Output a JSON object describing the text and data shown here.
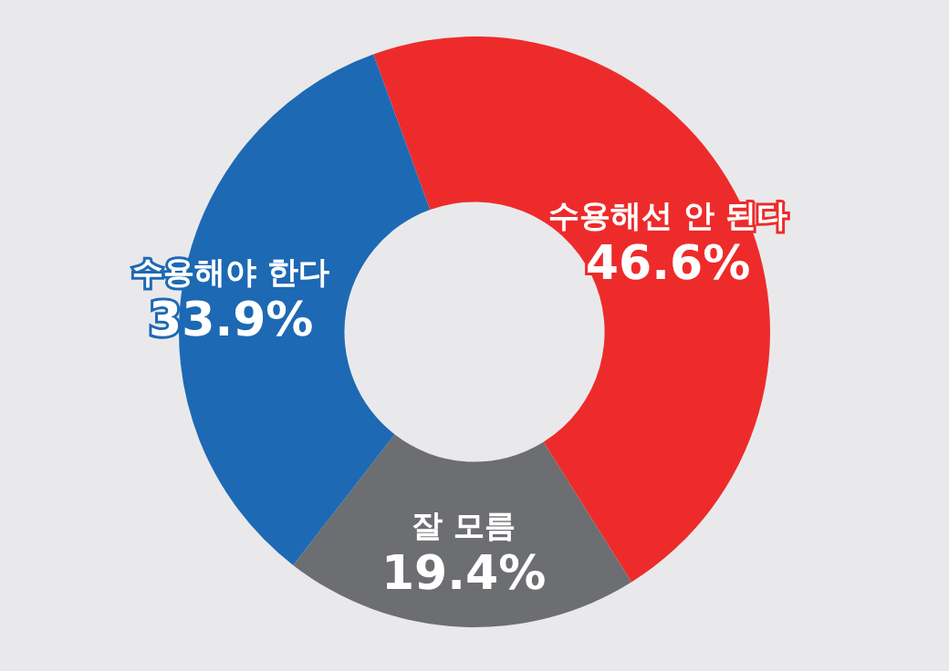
{
  "chart_data": {
    "type": "donut",
    "categories": [
      "수용해선 안 된다",
      "잘 모름",
      "수용해야 한다"
    ],
    "values": [
      46.6,
      19.4,
      33.9
    ],
    "value_labels": [
      "46.6%",
      "19.4%",
      "33.9%"
    ],
    "colors": [
      "#ee2b2b",
      "#6d6e71",
      "#1d69b4"
    ]
  }
}
